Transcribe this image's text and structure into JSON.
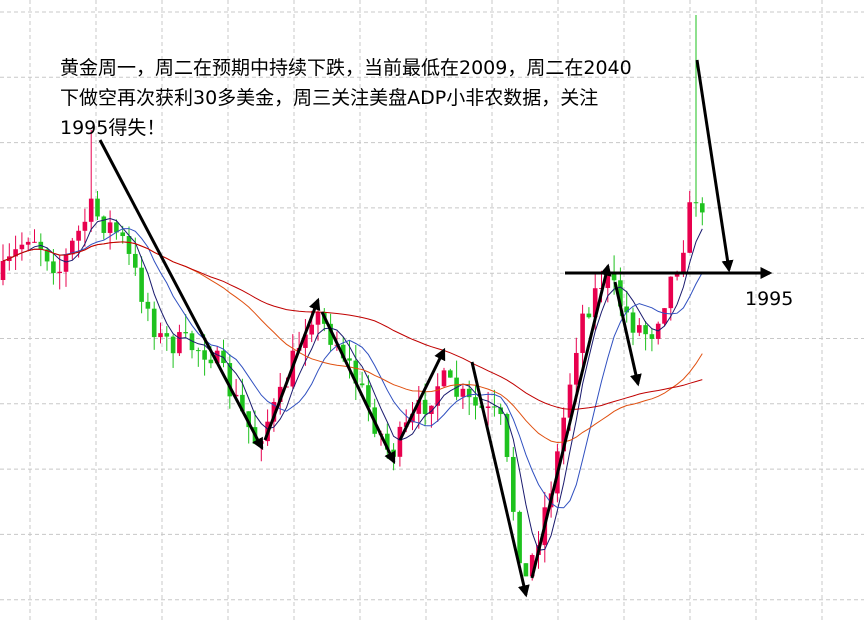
{
  "annotation": {
    "lines": [
      "黄金周一，周二在预期中持续下跌，当前最低在2009，周二在2040",
      "下做空再次获利30多美金，周三关注美盘ADP小非农数据，关注",
      "1995得失！"
    ]
  },
  "level_label": "1995"
}
